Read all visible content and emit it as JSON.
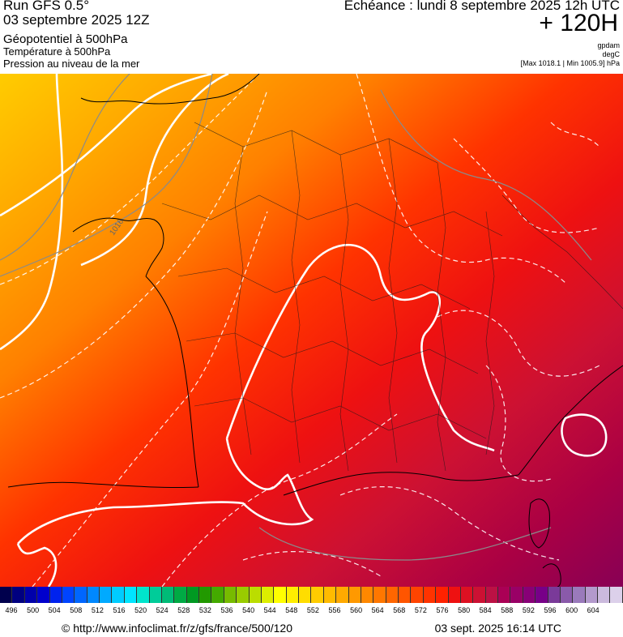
{
  "header": {
    "run_title": "Run GFS 0.5°",
    "run_date": "03 septembre 2025 12Z",
    "layer_geopotential": "Géopotentiel à 500hPa",
    "layer_temperature": "Température à 500hPa",
    "layer_pressure": "Pression au niveau de la mer",
    "valid_line": "Echéance : lundi 8 septembre 2025 12h UTC",
    "lead_time": "+ 120H",
    "unit_geopotential": "gpdam",
    "unit_temperature": "degC",
    "pressure_range": "[Max 1018.1 | Min 1005.9] hPa"
  },
  "map": {
    "isobar_label": "1016",
    "field_colors": {
      "ocean_far": "#ffcc00",
      "ocean_mid": "#ffaa00",
      "west": "#ff8000",
      "central": "#ff3300",
      "east": "#ee1111",
      "southeast": "#cc1133",
      "south": "#aa0044",
      "med": "#880055"
    }
  },
  "colorbar": {
    "labels": [
      "496",
      "500",
      "504",
      "508",
      "512",
      "516",
      "520",
      "524",
      "528",
      "532",
      "536",
      "540",
      "544",
      "548",
      "552",
      "556",
      "560",
      "564",
      "568",
      "572",
      "576",
      "580",
      "584",
      "588",
      "592",
      "596",
      "600",
      "604"
    ],
    "colors": [
      "#00004d",
      "#000080",
      "#0000aa",
      "#0000cc",
      "#0022ee",
      "#0044ff",
      "#0066ff",
      "#0088ff",
      "#00aaff",
      "#00ccff",
      "#00e5ff",
      "#00e5cc",
      "#00cc99",
      "#00bb77",
      "#00aa44",
      "#009922",
      "#229900",
      "#44aa00",
      "#77bb00",
      "#99cc00",
      "#bbdd00",
      "#ddee00",
      "#ffff00",
      "#ffee00",
      "#ffdd00",
      "#ffcc00",
      "#ffbb00",
      "#ffaa00",
      "#ff9900",
      "#ff8800",
      "#ff7700",
      "#ff6600",
      "#ff5500",
      "#ff4400",
      "#ff3300",
      "#ff2200",
      "#ee1111",
      "#dd1122",
      "#cc1133",
      "#bb1144",
      "#aa0055",
      "#990066",
      "#880077",
      "#770088",
      "#7a3a99",
      "#8a5aaa",
      "#9a7abb",
      "#b39acc",
      "#cbbadd",
      "#dcd0ea"
    ]
  },
  "footer": {
    "credit_url": "© http://www.infoclimat.fr/z/gfs/france/500/120",
    "issued": "03 sept. 2025 16:14 UTC"
  }
}
